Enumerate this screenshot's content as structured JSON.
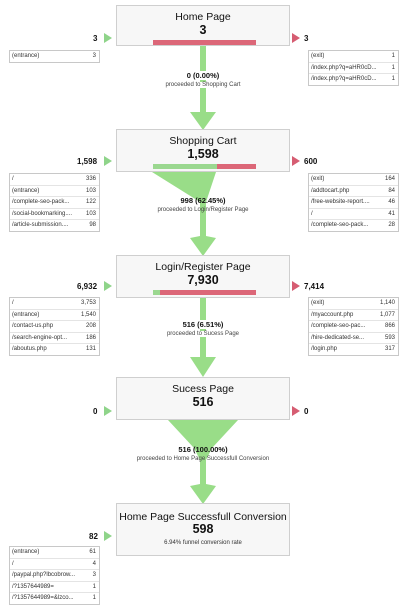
{
  "stages": [
    {
      "name": "Home Page",
      "count": "3",
      "in": "3",
      "out": "3",
      "proceed_fraction": 0.0,
      "entrances": [],
      "exits": [
        {
          "label": "(exit)",
          "value": "1"
        },
        {
          "label": "/index.php?q=aHR0cD...",
          "value": "1"
        },
        {
          "label": "/index.php?q=aHR0cD...",
          "value": "1"
        }
      ]
    },
    {
      "name": "Shopping Cart",
      "count": "1,598",
      "in": "1,598",
      "out": "600",
      "proceed_fraction": 0.6245,
      "entrances": [
        {
          "label": "/",
          "value": "336"
        },
        {
          "label": "(entrance)",
          "value": "103"
        },
        {
          "label": "/complete-seo-pack...",
          "value": "122"
        },
        {
          "label": "/social-bookmarking....",
          "value": "103"
        },
        {
          "label": "/article-submission....",
          "value": "98"
        }
      ],
      "exits": [
        {
          "label": "(exit)",
          "value": "164"
        },
        {
          "label": "/addtocart.php",
          "value": "84"
        },
        {
          "label": "/free-website-report....",
          "value": "46"
        },
        {
          "label": "/",
          "value": "41"
        },
        {
          "label": "/complete-seo-pack...",
          "value": "28"
        }
      ]
    },
    {
      "name": "Login/Register Page",
      "count": "7,930",
      "in": "6,932",
      "out": "7,414",
      "proceed_fraction": 0.0651,
      "entrances": [
        {
          "label": "/",
          "value": "3,753"
        },
        {
          "label": "(entrance)",
          "value": "1,540"
        },
        {
          "label": "/contact-us.php",
          "value": "208"
        },
        {
          "label": "/search-engine-opt...",
          "value": "186"
        },
        {
          "label": "/aboutus.php",
          "value": "131"
        }
      ],
      "exits": [
        {
          "label": "(exit)",
          "value": "1,140"
        },
        {
          "label": "/myaccount.php",
          "value": "1,077"
        },
        {
          "label": "/complete-seo-pac...",
          "value": "866"
        },
        {
          "label": "/hire-dedicated-se...",
          "value": "593"
        },
        {
          "label": "/login.php",
          "value": "317"
        }
      ]
    },
    {
      "name": "Sucess Page",
      "count": "516",
      "in": "0",
      "out": "0",
      "proceed_fraction": 1.0,
      "entrances": [],
      "exits": []
    },
    {
      "name": "Home Page Successfull Conversion",
      "count": "598",
      "in": "82",
      "note": "6.94% funnel conversion rate",
      "entrances": [
        {
          "label": "(entrance)",
          "value": "61"
        },
        {
          "label": "/",
          "value": "4"
        },
        {
          "label": "/paypal.php?lbcobrow...",
          "value": "3"
        },
        {
          "label": "/?1357644989=",
          "value": "1"
        },
        {
          "label": "/?1357644989=&lzco...",
          "value": "1"
        }
      ],
      "exits": []
    }
  ],
  "proceeds": [
    {
      "pct": "0 (0.00%)",
      "label": "proceeded to Shopping Cart"
    },
    {
      "pct": "998 (62.45%)",
      "label": "proceeded to Login/Register Page"
    },
    {
      "pct": "516 (6.51%)",
      "label": "proceeded to Sucess Page"
    },
    {
      "pct": "516 (100.00%)",
      "label": "proceeded to Home Page Successfull Conversion"
    }
  ],
  "colors": {
    "entry_green": "#8fd48a",
    "exit_red": "#d65d72",
    "funnel_green": "#99dd88"
  }
}
